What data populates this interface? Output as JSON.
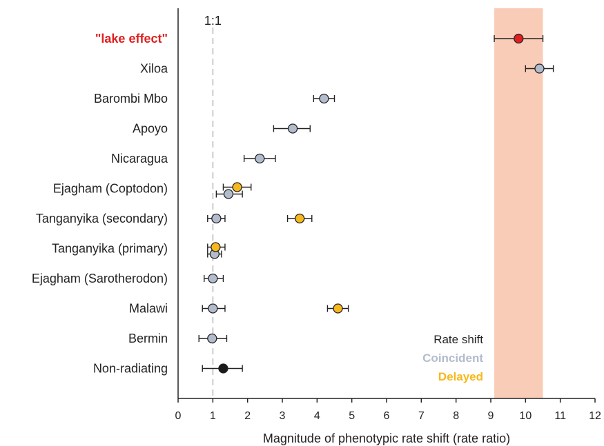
{
  "chart_data": {
    "type": "scatter",
    "title": "",
    "xlabel": "Magnitude of phenotypic rate shift (rate ratio)",
    "ylabel": "",
    "xlim": [
      0,
      12
    ],
    "x_ticks": [
      "0",
      "1",
      "2",
      "3",
      "4",
      "5",
      "6",
      "7",
      "8",
      "9",
      "10",
      "11",
      "12"
    ],
    "grid": false,
    "reference_line": {
      "x": 1,
      "label": "1:1",
      "color": "#cccccc"
    },
    "highlight_band": {
      "x_from": 9.1,
      "x_to": 10.5,
      "color": "#f9ccb8"
    },
    "categories": [
      "\"lake effect\"",
      "Xiloa",
      "Barombi Mbo",
      "Apoyo",
      "Nicaragua",
      "Ejagham (Coptodon)",
      "Tanganyika (secondary)",
      "Tanganyika (primary)",
      "Ejagham (Sarotherodon)",
      "Malawi",
      "Bermin",
      "Non-radiating"
    ],
    "highlight_category_color": "#e02020",
    "series": [
      {
        "key": "lake",
        "color": "#e02020",
        "points": [
          {
            "cat": 0,
            "x": 9.8,
            "lo": 9.1,
            "hi": 10.5
          }
        ]
      },
      {
        "key": "coincident",
        "color": "#b3bccd",
        "points": [
          {
            "cat": 1,
            "x": 10.4,
            "lo": 10.0,
            "hi": 10.8
          },
          {
            "cat": 2,
            "x": 4.2,
            "lo": 3.9,
            "hi": 4.5
          },
          {
            "cat": 3,
            "x": 3.3,
            "lo": 2.75,
            "hi": 3.8
          },
          {
            "cat": 4,
            "x": 2.35,
            "lo": 1.9,
            "hi": 2.8
          },
          {
            "cat": 5,
            "x": 1.45,
            "lo": 1.1,
            "hi": 1.85,
            "offset": 8
          },
          {
            "cat": 6,
            "x": 1.1,
            "lo": 0.85,
            "hi": 1.35
          },
          {
            "cat": 7,
            "x": 1.05,
            "lo": 0.85,
            "hi": 1.25,
            "offset": 8
          },
          {
            "cat": 8,
            "x": 1.0,
            "lo": 0.75,
            "hi": 1.3
          },
          {
            "cat": 9,
            "x": 1.0,
            "lo": 0.7,
            "hi": 1.35
          },
          {
            "cat": 10,
            "x": 0.98,
            "lo": 0.6,
            "hi": 1.4
          }
        ]
      },
      {
        "key": "delayed",
        "color": "#f6b81c",
        "points": [
          {
            "cat": 5,
            "x": 1.7,
            "lo": 1.3,
            "hi": 2.1,
            "offset": -2
          },
          {
            "cat": 6,
            "x": 3.5,
            "lo": 3.15,
            "hi": 3.85
          },
          {
            "cat": 7,
            "x": 1.08,
            "lo": 0.85,
            "hi": 1.35,
            "offset": -2
          },
          {
            "cat": 9,
            "x": 4.6,
            "lo": 4.3,
            "hi": 4.9
          }
        ]
      },
      {
        "key": "nonradiating",
        "color": "#1a1a1a",
        "points": [
          {
            "cat": 11,
            "x": 1.3,
            "lo": 0.7,
            "hi": 1.85
          }
        ]
      }
    ],
    "legend": {
      "title": "Rate shift",
      "title_color": "#222222",
      "placement": "bottom-right",
      "entries": [
        {
          "label": "Coincident",
          "color": "#b3bccd"
        },
        {
          "label": "Delayed",
          "color": "#f6b81c"
        }
      ]
    }
  }
}
